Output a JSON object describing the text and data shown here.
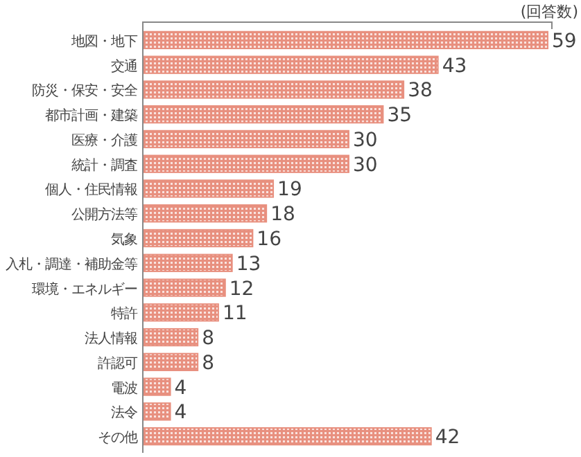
{
  "chart_data": {
    "type": "bar",
    "orientation": "horizontal",
    "xlabel": "(回答数)",
    "categories": [
      "地図・地下",
      "交通",
      "防災・保安・安全",
      "都市計画・建築",
      "医療・介護",
      "統計・調査",
      "個人・住民情報",
      "公開方法等",
      "気象",
      "入札・調達・補助金等",
      "環境・エネルギー",
      "特許",
      "法人情報",
      "許認可",
      "電波",
      "法令",
      "その他"
    ],
    "values": [
      59,
      43,
      38,
      35,
      30,
      30,
      19,
      18,
      16,
      13,
      12,
      11,
      8,
      8,
      4,
      4,
      42
    ],
    "color": "#e8907f",
    "data_labels": true
  }
}
